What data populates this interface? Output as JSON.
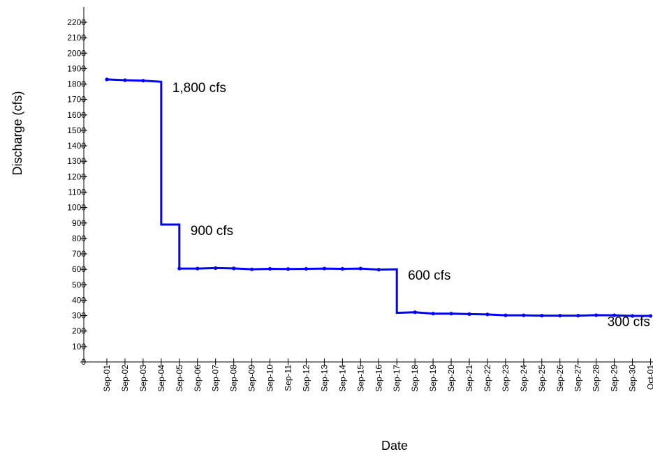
{
  "chart_data": {
    "type": "line",
    "title": "",
    "xlabel": "Date",
    "ylabel": "Discharge (cfs)",
    "ylim": [
      0,
      2200
    ],
    "yticks": [
      0,
      100,
      200,
      300,
      400,
      500,
      600,
      700,
      800,
      900,
      1000,
      1100,
      1200,
      1300,
      1400,
      1500,
      1600,
      1700,
      1800,
      1900,
      2000,
      2100,
      2200
    ],
    "categories": [
      "Sep-01",
      "Sep-02",
      "Sep-03",
      "Sep-04",
      "Sep-05",
      "Sep-06",
      "Sep-07",
      "Sep-08",
      "Sep-09",
      "Sep-10",
      "Sep-11",
      "Sep-12",
      "Sep-13",
      "Sep-14",
      "Sep-15",
      "Sep-16",
      "Sep-17",
      "Sep-18",
      "Sep-19",
      "Sep-20",
      "Sep-21",
      "Sep-22",
      "Sep-23",
      "Sep-24",
      "Sep-25",
      "Sep-26",
      "Sep-27",
      "Sep-28",
      "Sep-29",
      "Sep-30",
      "Oct-01"
    ],
    "series": [
      {
        "name": "",
        "color": "#0000ff",
        "step": true,
        "points": [
          {
            "x": "Sep-01",
            "y": 1830
          },
          {
            "x": "Sep-02",
            "y": 1825
          },
          {
            "x": "Sep-03",
            "y": 1822
          },
          {
            "x": "Sep-04",
            "y": 1815
          },
          {
            "x": "Sep-04",
            "y": 890
          },
          {
            "x": "Sep-05",
            "y": 890
          },
          {
            "x": "Sep-05",
            "y": 605
          },
          {
            "x": "Sep-06",
            "y": 605
          },
          {
            "x": "Sep-07",
            "y": 608
          },
          {
            "x": "Sep-08",
            "y": 606
          },
          {
            "x": "Sep-09",
            "y": 600
          },
          {
            "x": "Sep-10",
            "y": 603
          },
          {
            "x": "Sep-11",
            "y": 602
          },
          {
            "x": "Sep-12",
            "y": 603
          },
          {
            "x": "Sep-13",
            "y": 605
          },
          {
            "x": "Sep-14",
            "y": 603
          },
          {
            "x": "Sep-15",
            "y": 605
          },
          {
            "x": "Sep-16",
            "y": 598
          },
          {
            "x": "Sep-17",
            "y": 600
          },
          {
            "x": "Sep-17",
            "y": 318
          },
          {
            "x": "Sep-18",
            "y": 322
          },
          {
            "x": "Sep-19",
            "y": 313
          },
          {
            "x": "Sep-20",
            "y": 313
          },
          {
            "x": "Sep-21",
            "y": 310
          },
          {
            "x": "Sep-22",
            "y": 308
          },
          {
            "x": "Sep-23",
            "y": 302
          },
          {
            "x": "Sep-24",
            "y": 302
          },
          {
            "x": "Sep-25",
            "y": 300
          },
          {
            "x": "Sep-26",
            "y": 300
          },
          {
            "x": "Sep-27",
            "y": 300
          },
          {
            "x": "Sep-28",
            "y": 303
          },
          {
            "x": "Sep-29",
            "y": 302
          },
          {
            "x": "Sep-30",
            "y": 298
          },
          {
            "x": "Oct-01",
            "y": 298
          }
        ],
        "markers": [
          {
            "x": "Sep-01",
            "y": 1830
          },
          {
            "x": "Sep-02",
            "y": 1825
          },
          {
            "x": "Sep-03",
            "y": 1822
          },
          {
            "x": "Sep-05",
            "y": 605
          },
          {
            "x": "Sep-06",
            "y": 605
          },
          {
            "x": "Sep-07",
            "y": 608
          },
          {
            "x": "Sep-08",
            "y": 606
          },
          {
            "x": "Sep-09",
            "y": 600
          },
          {
            "x": "Sep-10",
            "y": 603
          },
          {
            "x": "Sep-11",
            "y": 602
          },
          {
            "x": "Sep-12",
            "y": 603
          },
          {
            "x": "Sep-13",
            "y": 605
          },
          {
            "x": "Sep-14",
            "y": 603
          },
          {
            "x": "Sep-15",
            "y": 605
          },
          {
            "x": "Sep-16",
            "y": 598
          },
          {
            "x": "Sep-18",
            "y": 322
          },
          {
            "x": "Sep-19",
            "y": 313
          },
          {
            "x": "Sep-20",
            "y": 313
          },
          {
            "x": "Sep-21",
            "y": 310
          },
          {
            "x": "Sep-22",
            "y": 308
          },
          {
            "x": "Sep-23",
            "y": 302
          },
          {
            "x": "Sep-24",
            "y": 302
          },
          {
            "x": "Sep-25",
            "y": 300
          },
          {
            "x": "Sep-26",
            "y": 300
          },
          {
            "x": "Sep-27",
            "y": 300
          },
          {
            "x": "Sep-28",
            "y": 303
          },
          {
            "x": "Sep-29",
            "y": 302
          },
          {
            "x": "Sep-30",
            "y": 298
          },
          {
            "x": "Oct-01",
            "y": 298
          }
        ]
      }
    ],
    "annotations": [
      {
        "text": "1,800 cfs",
        "x": "Sep-05",
        "y": 1815
      },
      {
        "text": "900 cfs",
        "x": "Sep-06",
        "y": 890
      },
      {
        "text": "600 cfs",
        "x": "Sep-18",
        "y": 600
      },
      {
        "text": "300 cfs",
        "x": "Sep-29",
        "y": 300
      }
    ],
    "grid": false,
    "legend": "none"
  }
}
